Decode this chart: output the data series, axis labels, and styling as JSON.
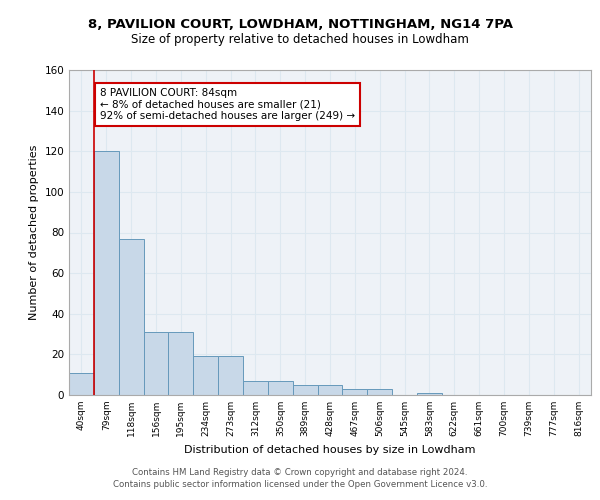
{
  "title1": "8, PAVILION COURT, LOWDHAM, NOTTINGHAM, NG14 7PA",
  "title2": "Size of property relative to detached houses in Lowdham",
  "xlabel": "Distribution of detached houses by size in Lowdham",
  "ylabel": "Number of detached properties",
  "footer1": "Contains HM Land Registry data © Crown copyright and database right 2024.",
  "footer2": "Contains public sector information licensed under the Open Government Licence v3.0.",
  "bin_labels": [
    "40sqm",
    "79sqm",
    "118sqm",
    "156sqm",
    "195sqm",
    "234sqm",
    "273sqm",
    "312sqm",
    "350sqm",
    "389sqm",
    "428sqm",
    "467sqm",
    "506sqm",
    "545sqm",
    "583sqm",
    "622sqm",
    "661sqm",
    "700sqm",
    "739sqm",
    "777sqm",
    "816sqm"
  ],
  "bar_heights": [
    11,
    120,
    77,
    31,
    31,
    19,
    19,
    7,
    7,
    5,
    5,
    3,
    3,
    0,
    1,
    0,
    0,
    0,
    0,
    0,
    0
  ],
  "bar_color": "#c8d8e8",
  "bar_edge_color": "#6699bb",
  "grid_color": "#dde8f0",
  "background_color": "#eef2f7",
  "red_line_x": 0.5,
  "annotation_text": "8 PAVILION COURT: 84sqm\n← 8% of detached houses are smaller (21)\n92% of semi-detached houses are larger (249) →",
  "annotation_box_color": "#ffffff",
  "annotation_border_color": "#cc0000",
  "ylim": [
    0,
    160
  ],
  "yticks": [
    0,
    20,
    40,
    60,
    80,
    100,
    120,
    140,
    160
  ]
}
